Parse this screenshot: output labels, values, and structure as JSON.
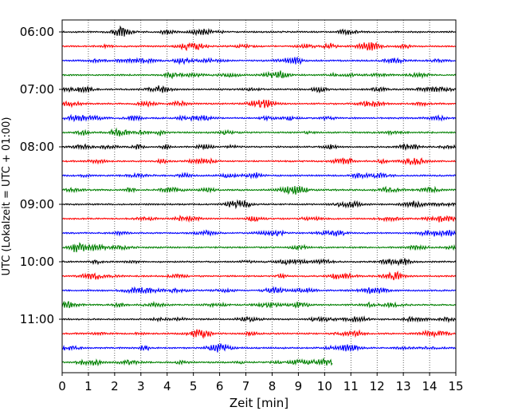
{
  "chart_data": {
    "type": "line",
    "title": "",
    "xlabel": "Zeit  [min]",
    "ylabel": "UTC (Lokalzeit = UTC + 01:00)",
    "xlim": [
      0,
      15
    ],
    "x_ticks": [
      0,
      1,
      2,
      3,
      4,
      5,
      6,
      7,
      8,
      9,
      10,
      11,
      12,
      13,
      14,
      15
    ],
    "y_ticks": [
      "06:00",
      "07:00",
      "08:00",
      "09:00",
      "10:00",
      "11:00"
    ],
    "trace_minutes": 15,
    "grid": "vertical dotted lines at each minute",
    "traces": [
      {
        "start": "06:00",
        "color": "#000000",
        "end_min": 15
      },
      {
        "start": "06:15",
        "color": "#ff0000",
        "end_min": 15
      },
      {
        "start": "06:30",
        "color": "#0000ff",
        "end_min": 15
      },
      {
        "start": "06:45",
        "color": "#008000",
        "end_min": 15
      },
      {
        "start": "07:00",
        "color": "#000000",
        "end_min": 15
      },
      {
        "start": "07:15",
        "color": "#ff0000",
        "end_min": 15
      },
      {
        "start": "07:30",
        "color": "#0000ff",
        "end_min": 15
      },
      {
        "start": "07:45",
        "color": "#008000",
        "end_min": 15
      },
      {
        "start": "08:00",
        "color": "#000000",
        "end_min": 15
      },
      {
        "start": "08:15",
        "color": "#ff0000",
        "end_min": 15
      },
      {
        "start": "08:30",
        "color": "#0000ff",
        "end_min": 15
      },
      {
        "start": "08:45",
        "color": "#008000",
        "end_min": 15
      },
      {
        "start": "09:00",
        "color": "#000000",
        "end_min": 15
      },
      {
        "start": "09:15",
        "color": "#ff0000",
        "end_min": 15
      },
      {
        "start": "09:30",
        "color": "#0000ff",
        "end_min": 15
      },
      {
        "start": "09:45",
        "color": "#008000",
        "end_min": 15
      },
      {
        "start": "10:00",
        "color": "#000000",
        "end_min": 15
      },
      {
        "start": "10:15",
        "color": "#ff0000",
        "end_min": 15
      },
      {
        "start": "10:30",
        "color": "#0000ff",
        "end_min": 15
      },
      {
        "start": "10:45",
        "color": "#008000",
        "end_min": 15
      },
      {
        "start": "11:00",
        "color": "#000000",
        "end_min": 15
      },
      {
        "start": "11:15",
        "color": "#ff0000",
        "end_min": 15
      },
      {
        "start": "11:30",
        "color": "#0000ff",
        "end_min": 15
      },
      {
        "start": "11:45",
        "color": "#008000",
        "end_min": 10.3
      }
    ]
  }
}
